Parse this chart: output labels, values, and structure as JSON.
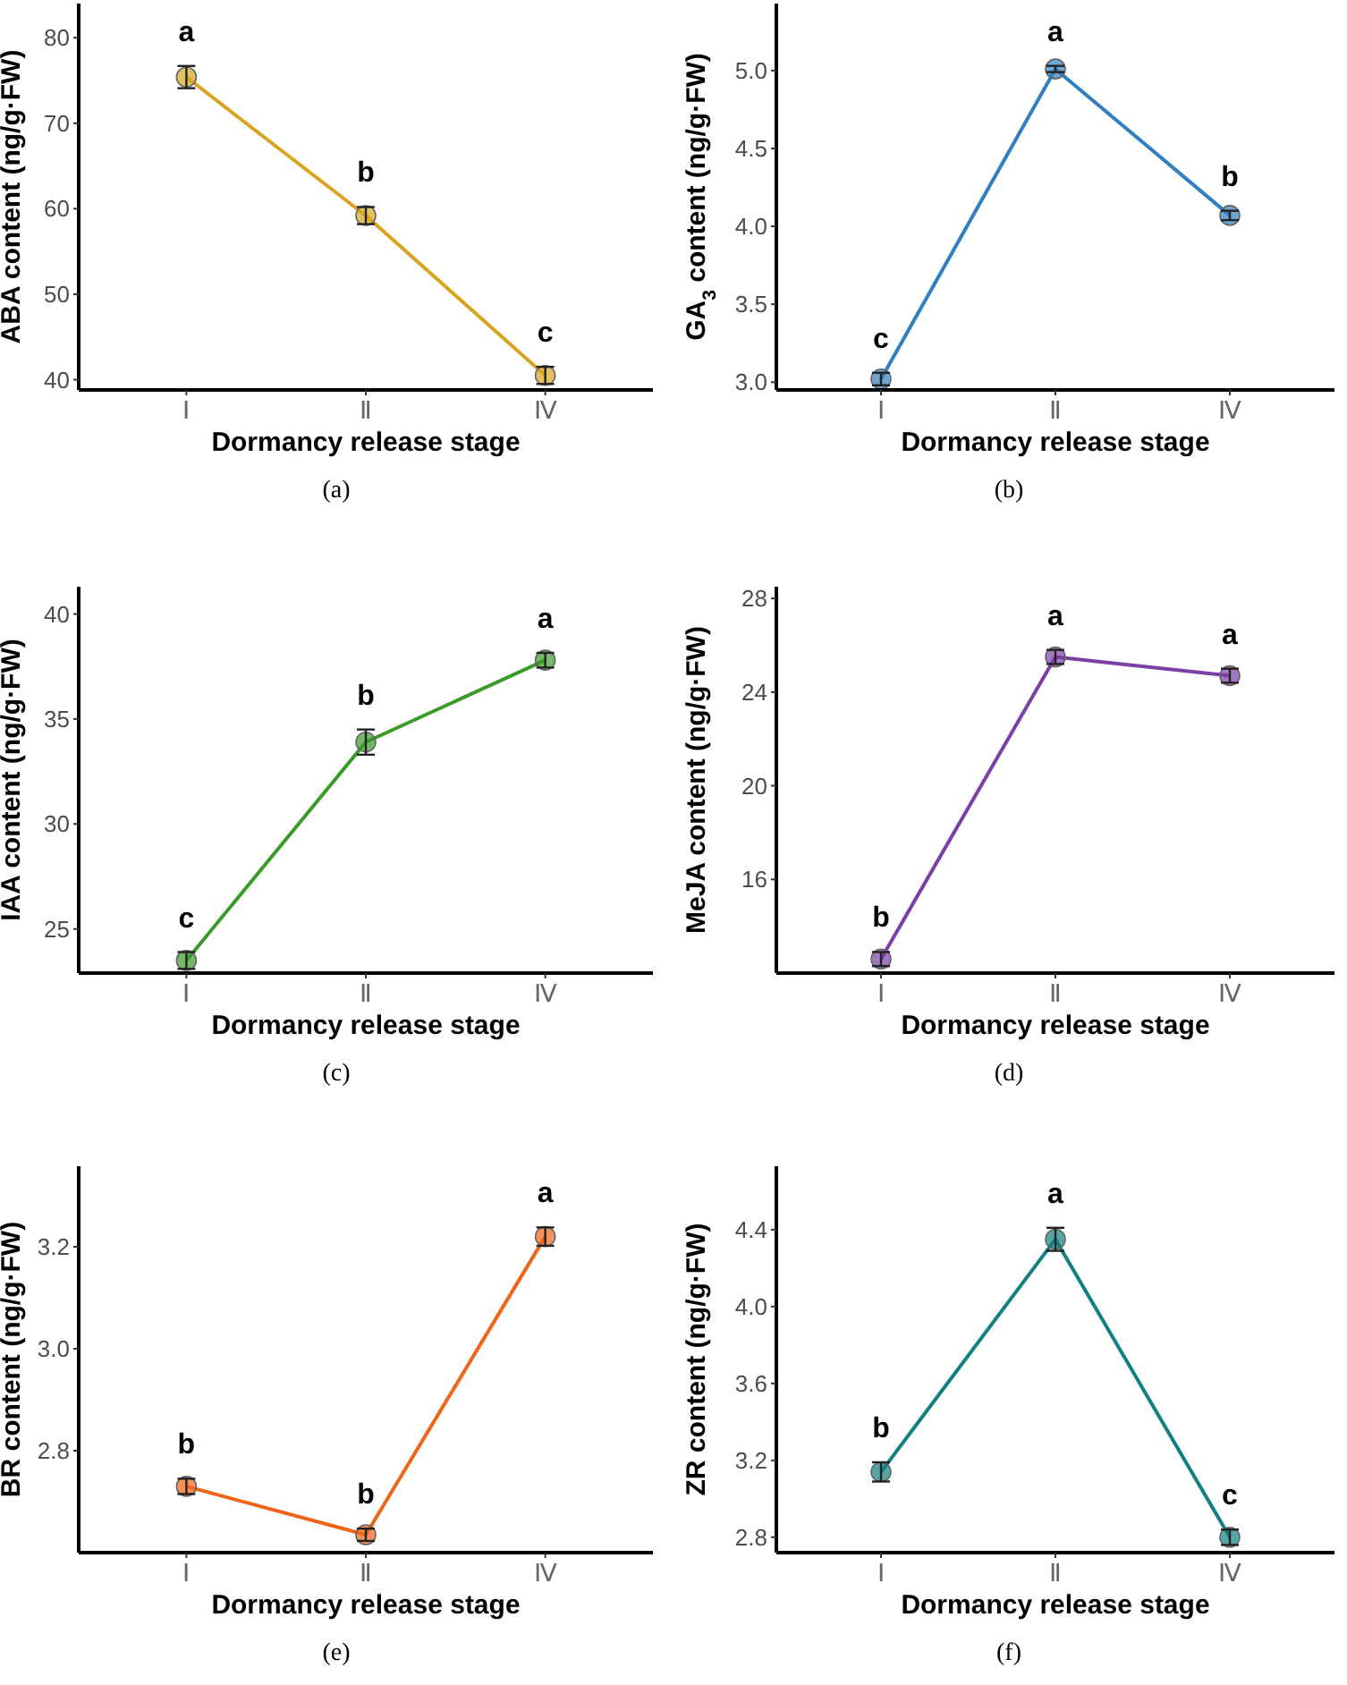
{
  "chart_data": [
    {
      "type": "line",
      "ylabel": "ABA content (ng/g·FW)",
      "xlabel": "Dormancy release stage",
      "categories": [
        "Ⅰ",
        "Ⅱ",
        "Ⅳ"
      ],
      "series": [
        {
          "color": "#d9a520",
          "values": [
            75.4,
            59.2,
            40.5
          ],
          "errors": [
            1.3,
            1.0,
            1.0
          ]
        }
      ],
      "ylim": [
        38.8,
        84
      ],
      "yticks": [
        40,
        50,
        60,
        70,
        80
      ],
      "marker": "circle",
      "grid": false,
      "annotations": [
        "a",
        "b",
        "c",
        "(a)"
      ]
    },
    {
      "type": "line",
      "ylabel": "GA$_{3}$ content (ng/g·FW)",
      "xlabel": "Dormancy release stage",
      "categories": [
        "Ⅰ",
        "Ⅱ",
        "Ⅳ"
      ],
      "series": [
        {
          "color": "#2f7fc1",
          "values": [
            3.02,
            5.01,
            4.07
          ],
          "errors": [
            0.04,
            0.02,
            0.03
          ]
        }
      ],
      "ylim": [
        2.95,
        5.43
      ],
      "yticks": [
        {
          "value": 3,
          "label": "3.0"
        },
        4.5,
        {
          "value": 4,
          "label": "4.0"
        },
        3.5,
        {
          "value": 5,
          "label": "5.0"
        }
      ],
      "marker": "circle",
      "grid": false,
      "annotations": [
        "c",
        "a",
        "b",
        "(b)"
      ]
    },
    {
      "type": "line",
      "ylabel": "IAA content (ng/g·FW)",
      "xlabel": "Dormancy release stage",
      "categories": [
        "Ⅰ",
        "Ⅱ",
        "Ⅳ"
      ],
      "series": [
        {
          "color": "#3a9a2a",
          "values": [
            23.5,
            33.9,
            37.8
          ],
          "errors": [
            0.4,
            0.6,
            0.35
          ]
        }
      ],
      "ylim": [
        22.9,
        41.3
      ],
      "yticks": [
        25,
        30,
        35,
        40
      ],
      "marker": "circle",
      "grid": false,
      "annotations": [
        "c",
        "b",
        "a",
        "(c)"
      ]
    },
    {
      "type": "line",
      "ylabel": "MeJA content (ng/g·FW)",
      "xlabel": "Dormancy release stage",
      "categories": [
        "Ⅰ",
        "Ⅱ",
        "Ⅳ"
      ],
      "series": [
        {
          "color": "#7b3fa8",
          "values": [
            12.6,
            25.5,
            24.7
          ],
          "errors": [
            0.3,
            0.3,
            0.3
          ]
        }
      ],
      "ylim": [
        12.0,
        28.5
      ],
      "yticks": [
        16,
        20,
        24,
        28
      ],
      "marker": "circle",
      "grid": false,
      "annotations": [
        "b",
        "a",
        "a",
        "(d)"
      ]
    },
    {
      "type": "line",
      "ylabel": "BR content (ng/g·FW)",
      "xlabel": "Dormancy release stage",
      "categories": [
        "Ⅰ",
        "Ⅱ",
        "Ⅳ"
      ],
      "series": [
        {
          "color": "#f06418",
          "values": [
            2.73,
            2.635,
            3.22
          ],
          "errors": [
            0.015,
            0.012,
            0.018
          ]
        }
      ],
      "ylim": [
        2.6,
        3.358
      ],
      "yticks": [
        2.8,
        {
          "value": 3,
          "label": "3.0"
        },
        3.2
      ],
      "marker": "circle",
      "grid": false,
      "annotations": [
        "b",
        "b",
        "a",
        "(e)"
      ]
    },
    {
      "type": "line",
      "ylabel": "ZR content (ng/g·FW)",
      "xlabel": "Dormancy release stage",
      "categories": [
        "Ⅰ",
        "Ⅱ",
        "Ⅳ"
      ],
      "series": [
        {
          "color": "#108080",
          "values": [
            3.14,
            4.35,
            2.8
          ],
          "errors": [
            0.05,
            0.06,
            0.04
          ]
        }
      ],
      "ylim": [
        2.72,
        4.73
      ],
      "yticks": [
        2.8,
        3.2,
        3.6,
        {
          "value": 4,
          "label": "4.0"
        },
        4.4
      ],
      "marker": "circle",
      "grid": false,
      "annotations": [
        "b",
        "a",
        "c",
        "(f)"
      ]
    }
  ]
}
